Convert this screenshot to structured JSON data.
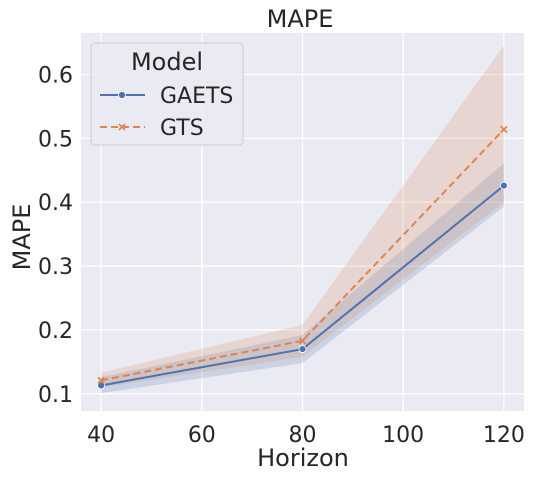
{
  "chart_data": {
    "type": "line",
    "title": "MAPE",
    "xlabel": "Horizon",
    "ylabel": "MAPE",
    "x": [
      40,
      80,
      120
    ],
    "xlim": [
      36,
      124
    ],
    "ylim": [
      0.073,
      0.665
    ],
    "xticks": [
      40,
      60,
      80,
      100,
      120
    ],
    "yticks": [
      0.1,
      0.2,
      0.3,
      0.4,
      0.5,
      0.6
    ],
    "xtick_labels": [
      "40",
      "60",
      "80",
      "100",
      "120"
    ],
    "ytick_labels": [
      "0.1",
      "0.2",
      "0.3",
      "0.4",
      "0.5",
      "0.6"
    ],
    "grid": true,
    "legend": {
      "title": "Model",
      "placement": "top-left"
    },
    "series": [
      {
        "name": "GAETS",
        "values": [
          0.113,
          0.17,
          0.426
        ],
        "ci_lower": [
          0.101,
          0.148,
          0.393
        ],
        "ci_upper": [
          0.126,
          0.192,
          0.461
        ],
        "color": "#4c72b0",
        "linestyle": "solid",
        "marker": "circle"
      },
      {
        "name": "GTS",
        "values": [
          0.121,
          0.183,
          0.514
        ],
        "ci_lower": [
          0.11,
          0.158,
          0.4
        ],
        "ci_upper": [
          0.133,
          0.208,
          0.645
        ],
        "color": "#dd8452",
        "linestyle": "dashed",
        "marker": "x"
      }
    ],
    "background_color": "#eaeaf2",
    "grid_color": "#ffffff"
  }
}
